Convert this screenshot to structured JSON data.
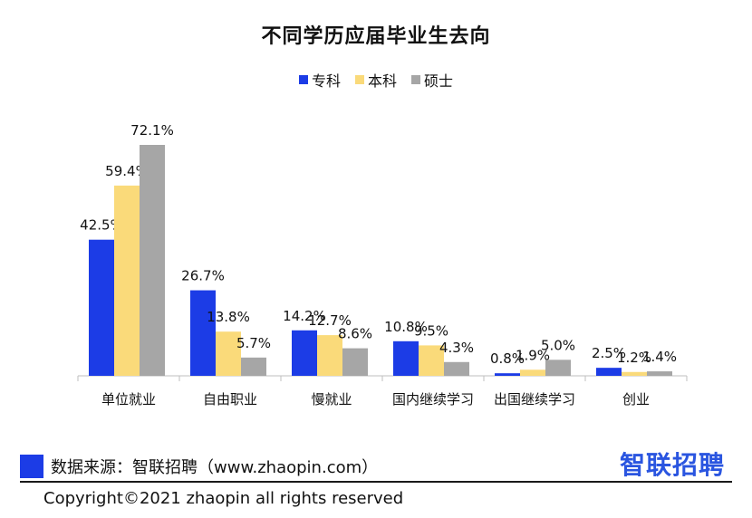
{
  "chart_data": {
    "type": "bar",
    "title": "不同学历应届毕业生去向",
    "categories": [
      "单位就业",
      "自由职业",
      "慢就业",
      "国内继续学习",
      "出国继续学习",
      "创业"
    ],
    "series": [
      {
        "name": "专科",
        "color": "#1c3ce6",
        "values": [
          42.5,
          26.7,
          14.2,
          10.8,
          0.8,
          2.5
        ],
        "labels": [
          "42.5%",
          "26.7%",
          "14.2%",
          "10.8%",
          "0.8%",
          "2.5%"
        ]
      },
      {
        "name": "本科",
        "color": "#fada7a",
        "values": [
          59.4,
          13.8,
          12.7,
          9.5,
          1.9,
          1.2
        ],
        "labels": [
          "59.4%",
          "13.8%",
          "12.7%",
          "9.5%",
          "1.9%",
          "1.2%"
        ]
      },
      {
        "name": "硕士",
        "color": "#a6a6a6",
        "values": [
          72.1,
          5.7,
          8.6,
          4.3,
          5.0,
          1.4
        ],
        "labels": [
          "72.1%",
          "5.7%",
          "8.6%",
          "4.3%",
          "5.0%",
          "1.4%"
        ]
      }
    ],
    "ylim": [
      0,
      80
    ],
    "grid": false,
    "legend": "top-center"
  },
  "footer": {
    "source": "数据来源：智联招聘（www.zhaopin.com）",
    "logo": "智联招聘",
    "copyright": "Copyright©2021 zhaopin all rights reserved"
  }
}
